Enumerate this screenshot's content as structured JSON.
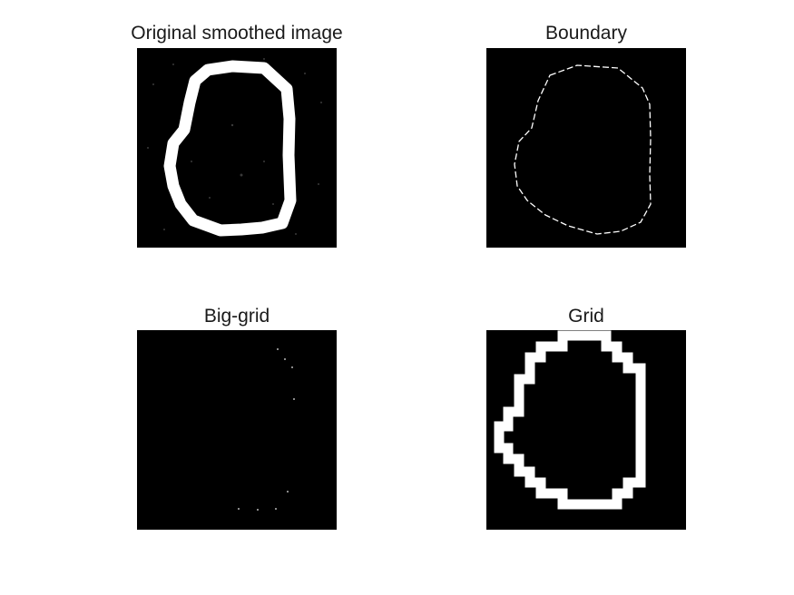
{
  "figure": {
    "background": "#ffffff",
    "image_background": "#000000",
    "foreground": "#ffffff",
    "panels": [
      {
        "title": "Original smoothed image"
      },
      {
        "title": "Boundary"
      },
      {
        "title": "Big-grid"
      },
      {
        "title": "Grid"
      }
    ]
  }
}
